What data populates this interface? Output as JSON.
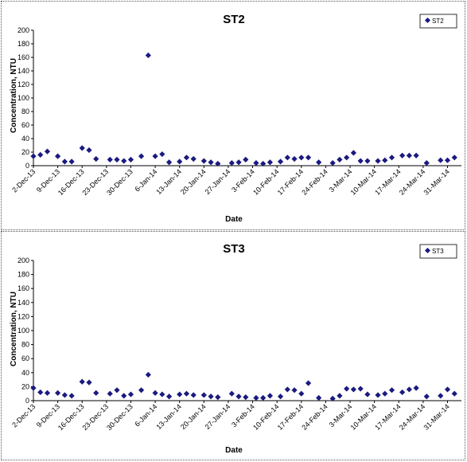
{
  "chart_data": [
    {
      "type": "scatter",
      "title": "ST2",
      "xlabel": "Date",
      "ylabel": "Concentration, NTU",
      "ylim": [
        0,
        200
      ],
      "yticks": [
        0,
        20,
        40,
        60,
        80,
        100,
        120,
        140,
        160,
        180,
        200
      ],
      "xlim": [
        "2-Dec-13",
        "4-Apr-14"
      ],
      "xticks": [
        "2-Dec-13",
        "9-Dec-13",
        "16-Dec-13",
        "23-Dec-13",
        "30-Dec-13",
        "6-Jan-14",
        "13-Jan-14",
        "20-Jan-14",
        "27-Jan-14",
        "3-Feb-14",
        "10-Feb-14",
        "17-Feb-14",
        "24-Feb-14",
        "3-Mar-14",
        "10-Mar-14",
        "17-Mar-14",
        "24-Mar-14",
        "31-Mar-14"
      ],
      "legend_position": "top-right",
      "grid": false,
      "color": "#1a1a80",
      "series": [
        {
          "name": "ST2",
          "points": [
            [
              "2-Dec-13",
              14
            ],
            [
              "4-Dec-13",
              16
            ],
            [
              "6-Dec-13",
              21
            ],
            [
              "9-Dec-13",
              14
            ],
            [
              "11-Dec-13",
              6
            ],
            [
              "13-Dec-13",
              6
            ],
            [
              "16-Dec-13",
              26
            ],
            [
              "18-Dec-13",
              23
            ],
            [
              "20-Dec-13",
              10
            ],
            [
              "24-Dec-13",
              9
            ],
            [
              "26-Dec-13",
              9
            ],
            [
              "28-Dec-13",
              7
            ],
            [
              "30-Dec-13",
              9
            ],
            [
              "2-Jan-14",
              14
            ],
            [
              "4-Jan-14",
              163
            ],
            [
              "6-Jan-14",
              14
            ],
            [
              "8-Jan-14",
              17
            ],
            [
              "10-Jan-14",
              5
            ],
            [
              "13-Jan-14",
              6
            ],
            [
              "15-Jan-14",
              12
            ],
            [
              "17-Jan-14",
              10
            ],
            [
              "20-Jan-14",
              7
            ],
            [
              "22-Jan-14",
              5
            ],
            [
              "24-Jan-14",
              3
            ],
            [
              "28-Jan-14",
              4
            ],
            [
              "30-Jan-14",
              5
            ],
            [
              "1-Feb-14",
              9
            ],
            [
              "4-Feb-14",
              4
            ],
            [
              "6-Feb-14",
              3
            ],
            [
              "8-Feb-14",
              5
            ],
            [
              "11-Feb-14",
              6
            ],
            [
              "13-Feb-14",
              12
            ],
            [
              "15-Feb-14",
              10
            ],
            [
              "17-Feb-14",
              12
            ],
            [
              "19-Feb-14",
              12
            ],
            [
              "22-Feb-14",
              5
            ],
            [
              "26-Feb-14",
              4
            ],
            [
              "28-Feb-14",
              9
            ],
            [
              "2-Mar-14",
              12
            ],
            [
              "4-Mar-14",
              19
            ],
            [
              "6-Mar-14",
              7
            ],
            [
              "8-Mar-14",
              7
            ],
            [
              "11-Mar-14",
              7
            ],
            [
              "13-Mar-14",
              8
            ],
            [
              "15-Mar-14",
              12
            ],
            [
              "18-Mar-14",
              15
            ],
            [
              "20-Mar-14",
              15
            ],
            [
              "22-Mar-14",
              15
            ],
            [
              "25-Mar-14",
              4
            ],
            [
              "29-Mar-14",
              8
            ],
            [
              "31-Mar-14",
              8
            ],
            [
              "2-Apr-14",
              12
            ]
          ]
        }
      ]
    },
    {
      "type": "scatter",
      "title": "ST3",
      "xlabel": "Date",
      "ylabel": "Concentration, NTU",
      "ylim": [
        0,
        200
      ],
      "yticks": [
        0,
        20,
        40,
        60,
        80,
        100,
        120,
        140,
        160,
        180,
        200
      ],
      "xlim": [
        "2-Dec-13",
        "4-Apr-14"
      ],
      "xticks": [
        "2-Dec-13",
        "9-Dec-13",
        "16-Dec-13",
        "23-Dec-13",
        "30-Dec-13",
        "6-Jan-14",
        "13-Jan-14",
        "20-Jan-14",
        "27-Jan-14",
        "3-Feb-14",
        "10-Feb-14",
        "17-Feb-14",
        "24-Feb-14",
        "3-Mar-14",
        "10-Mar-14",
        "17-Mar-14",
        "24-Mar-14",
        "31-Mar-14"
      ],
      "legend_position": "top-right",
      "grid": false,
      "color": "#1a1a80",
      "series": [
        {
          "name": "ST3",
          "points": [
            [
              "2-Dec-13",
              18
            ],
            [
              "4-Dec-13",
              12
            ],
            [
              "6-Dec-13",
              11
            ],
            [
              "9-Dec-13",
              11
            ],
            [
              "11-Dec-13",
              8
            ],
            [
              "13-Dec-13",
              7
            ],
            [
              "16-Dec-13",
              27
            ],
            [
              "18-Dec-13",
              26
            ],
            [
              "20-Dec-13",
              11
            ],
            [
              "24-Dec-13",
              10
            ],
            [
              "26-Dec-13",
              15
            ],
            [
              "28-Dec-13",
              7
            ],
            [
              "30-Dec-13",
              9
            ],
            [
              "2-Jan-14",
              15
            ],
            [
              "4-Jan-14",
              37
            ],
            [
              "6-Jan-14",
              11
            ],
            [
              "8-Jan-14",
              9
            ],
            [
              "10-Jan-14",
              6
            ],
            [
              "13-Jan-14",
              9
            ],
            [
              "15-Jan-14",
              10
            ],
            [
              "17-Jan-14",
              8
            ],
            [
              "20-Jan-14",
              8
            ],
            [
              "22-Jan-14",
              6
            ],
            [
              "24-Jan-14",
              5
            ],
            [
              "28-Jan-14",
              10
            ],
            [
              "30-Jan-14",
              6
            ],
            [
              "1-Feb-14",
              5
            ],
            [
              "4-Feb-14",
              4
            ],
            [
              "6-Feb-14",
              4
            ],
            [
              "8-Feb-14",
              7
            ],
            [
              "11-Feb-14",
              6
            ],
            [
              "13-Feb-14",
              16
            ],
            [
              "15-Feb-14",
              15
            ],
            [
              "17-Feb-14",
              10
            ],
            [
              "19-Feb-14",
              25
            ],
            [
              "22-Feb-14",
              4
            ],
            [
              "26-Feb-14",
              3
            ],
            [
              "28-Feb-14",
              7
            ],
            [
              "2-Mar-14",
              17
            ],
            [
              "4-Mar-14",
              16
            ],
            [
              "6-Mar-14",
              17
            ],
            [
              "8-Mar-14",
              9
            ],
            [
              "11-Mar-14",
              8
            ],
            [
              "13-Mar-14",
              10
            ],
            [
              "15-Mar-14",
              15
            ],
            [
              "18-Mar-14",
              12
            ],
            [
              "20-Mar-14",
              16
            ],
            [
              "22-Mar-14",
              18
            ],
            [
              "25-Mar-14",
              6
            ],
            [
              "29-Mar-14",
              7
            ],
            [
              "31-Mar-14",
              16
            ],
            [
              "2-Apr-14",
              10
            ]
          ]
        }
      ]
    }
  ]
}
